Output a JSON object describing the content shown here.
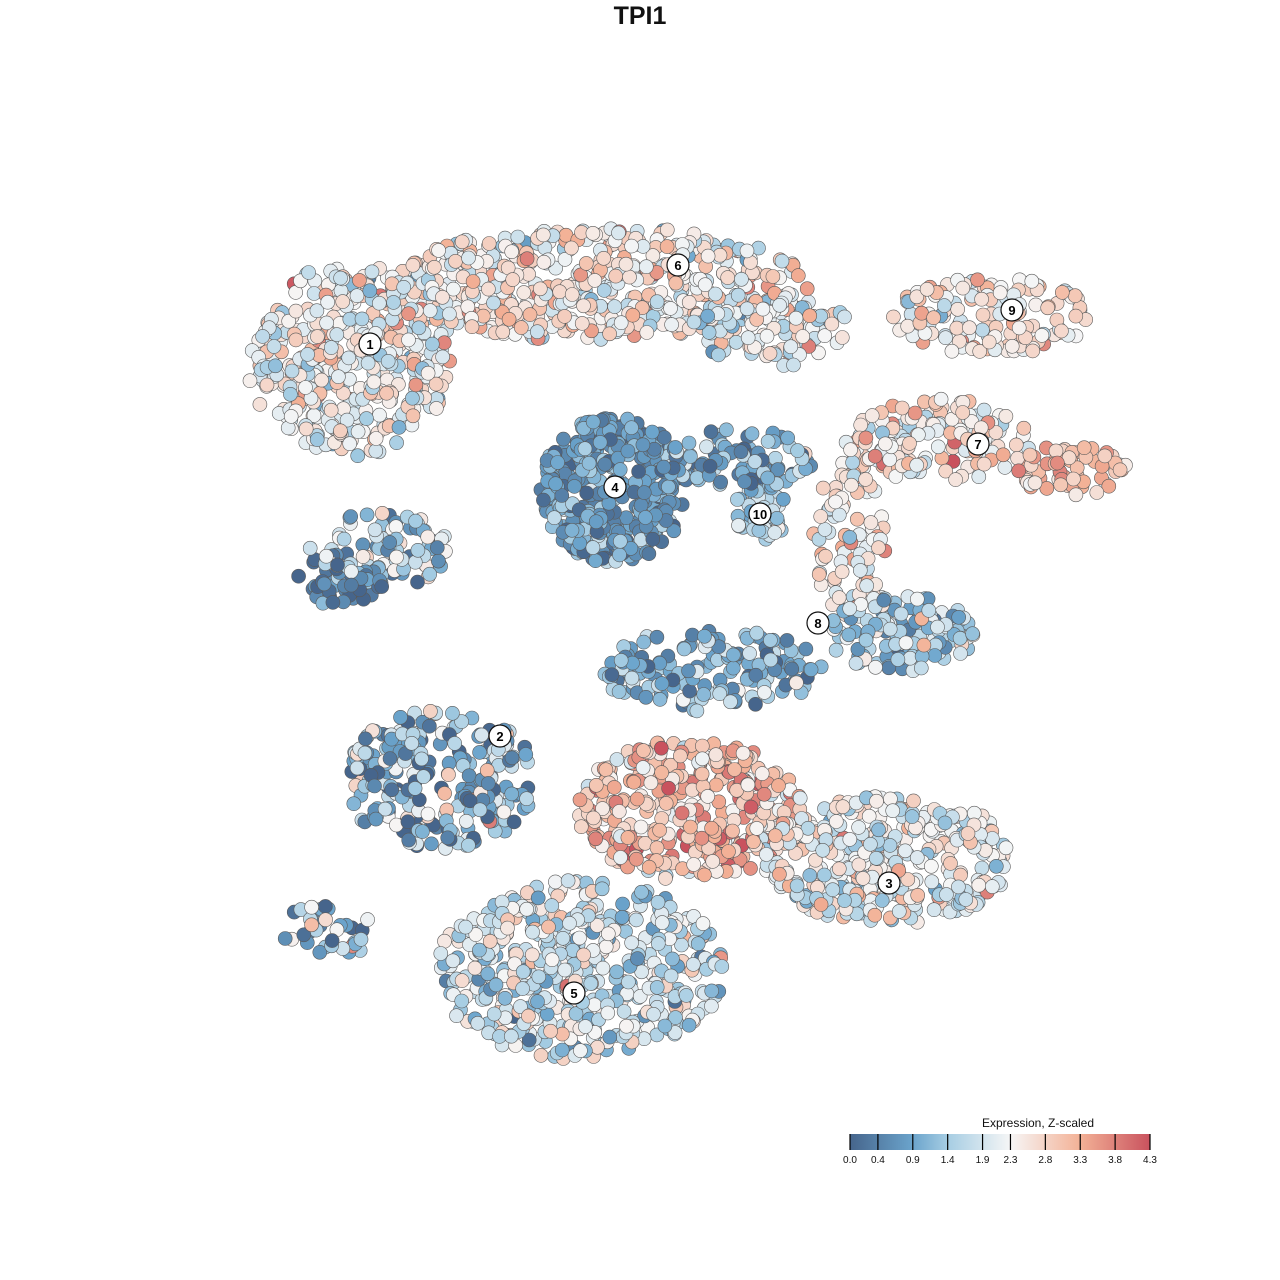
{
  "chart_data": {
    "type": "scatter",
    "title": "TPI1",
    "xlabel": "",
    "ylabel": "",
    "axes_visible": false,
    "grid": false,
    "xlim": [
      -25,
      25
    ],
    "ylim": [
      -25,
      25
    ],
    "legend": {
      "title": "Expression, Z-scaled",
      "placement": "bottom-right",
      "range": [
        0.0,
        4.3
      ],
      "ticks": [
        "0.0",
        "0.4",
        "0.9",
        "1.4",
        "1.9",
        "2.3",
        "2.8",
        "3.3",
        "3.8",
        "4.3"
      ],
      "tick_values": [
        0.0,
        0.4,
        0.9,
        1.4,
        1.9,
        2.3,
        2.8,
        3.3,
        3.8,
        4.3
      ],
      "colors": [
        {
          "v": 0.0,
          "c": "#46658c"
        },
        {
          "v": 0.9,
          "c": "#6ba4cc"
        },
        {
          "v": 1.4,
          "c": "#a6cde3"
        },
        {
          "v": 2.3,
          "c": "#f6f6f6"
        },
        {
          "v": 3.3,
          "c": "#f3b196"
        },
        {
          "v": 4.3,
          "c": "#c9525e"
        }
      ]
    },
    "cluster_labels": [
      {
        "label": "1",
        "x": -13.5,
        "y": 14.8
      },
      {
        "label": "2",
        "x": -7.0,
        "y": -4.8
      },
      {
        "label": "3",
        "x": 12.45,
        "y": -12.15
      },
      {
        "label": "4",
        "x": -1.25,
        "y": 7.65
      },
      {
        "label": "5",
        "x": -3.3,
        "y": -17.65
      },
      {
        "label": "6",
        "x": 1.9,
        "y": 18.75
      },
      {
        "label": "7",
        "x": 16.9,
        "y": 9.8
      },
      {
        "label": "8",
        "x": 8.9,
        "y": 0.85
      },
      {
        "label": "9",
        "x": 18.6,
        "y": 16.5
      },
      {
        "label": "10",
        "x": 6.0,
        "y": 6.3
      }
    ],
    "point_groups": [
      {
        "cluster": "1",
        "cx": -14.5,
        "cy": 14.0,
        "sx": 3.2,
        "sy": 3.0,
        "n": 420,
        "expr_mean": 2.3,
        "expr_sd": 0.6
      },
      {
        "cluster": "1",
        "cx": -13.0,
        "cy": 4.5,
        "sx": 2.2,
        "sy": 1.2,
        "n": 90,
        "expr_mean": 1.5,
        "expr_sd": 0.8
      },
      {
        "cluster": "1",
        "cx": -15.0,
        "cy": 3.0,
        "sx": 1.5,
        "sy": 0.8,
        "n": 50,
        "expr_mean": 0.3,
        "expr_sd": 0.4
      },
      {
        "cluster": "6",
        "cx": -2.0,
        "cy": 17.8,
        "sx": 6.5,
        "sy": 1.8,
        "n": 520,
        "expr_mean": 2.5,
        "expr_sd": 0.55
      },
      {
        "cluster": "6",
        "cx": 6.5,
        "cy": 15.5,
        "sx": 2.5,
        "sy": 1.2,
        "n": 110,
        "expr_mean": 2.1,
        "expr_sd": 0.6
      },
      {
        "cluster": "4",
        "cx": -1.3,
        "cy": 7.5,
        "sx": 2.3,
        "sy": 2.3,
        "n": 380,
        "expr_mean": 0.8,
        "expr_sd": 0.45
      },
      {
        "cluster": "10",
        "cx": 5.0,
        "cy": 9.0,
        "sx": 2.3,
        "sy": 1.0,
        "n": 90,
        "expr_mean": 0.9,
        "expr_sd": 0.6
      },
      {
        "cluster": "10",
        "cx": 6.0,
        "cy": 6.5,
        "sx": 0.8,
        "sy": 1.2,
        "n": 40,
        "expr_mean": 1.4,
        "expr_sd": 0.4
      },
      {
        "cluster": "9",
        "cx": 17.5,
        "cy": 16.2,
        "sx": 3.2,
        "sy": 1.2,
        "n": 140,
        "expr_mean": 2.6,
        "expr_sd": 0.5
      },
      {
        "cluster": "7",
        "cx": 15.0,
        "cy": 10.0,
        "sx": 3.0,
        "sy": 1.3,
        "n": 150,
        "expr_mean": 2.5,
        "expr_sd": 0.6
      },
      {
        "cluster": "7",
        "cx": 21.5,
        "cy": 8.5,
        "sx": 1.8,
        "sy": 0.8,
        "n": 60,
        "expr_mean": 3.0,
        "expr_sd": 0.4
      },
      {
        "cluster": "8",
        "cx": 10.5,
        "cy": 5.0,
        "sx": 1.2,
        "sy": 2.5,
        "n": 90,
        "expr_mean": 2.5,
        "expr_sd": 0.6
      },
      {
        "cluster": "8",
        "cx": 13.0,
        "cy": 0.3,
        "sx": 2.3,
        "sy": 1.2,
        "n": 140,
        "expr_mean": 1.6,
        "expr_sd": 0.7
      },
      {
        "cluster": "8",
        "cx": 3.5,
        "cy": -1.5,
        "sx": 3.5,
        "sy": 1.3,
        "n": 150,
        "expr_mean": 1.1,
        "expr_sd": 0.6
      },
      {
        "cluster": "2",
        "cx": -10.0,
        "cy": -7.0,
        "sx": 3.0,
        "sy": 2.2,
        "n": 250,
        "expr_mean": 1.2,
        "expr_sd": 0.9
      },
      {
        "cluster": "2",
        "cx": -15.5,
        "cy": -14.5,
        "sx": 1.6,
        "sy": 0.8,
        "n": 35,
        "expr_mean": 1.0,
        "expr_sd": 0.9
      },
      {
        "cluster": "3",
        "cx": 2.5,
        "cy": -8.5,
        "sx": 3.5,
        "sy": 2.2,
        "n": 380,
        "expr_mean": 3.0,
        "expr_sd": 0.6
      },
      {
        "cluster": "3",
        "cx": 12.5,
        "cy": -11.0,
        "sx": 4.0,
        "sy": 2.0,
        "n": 380,
        "expr_mean": 2.2,
        "expr_sd": 0.55
      },
      {
        "cluster": "5",
        "cx": -3.0,
        "cy": -16.5,
        "sx": 4.5,
        "sy": 2.8,
        "n": 500,
        "expr_mean": 1.9,
        "expr_sd": 0.6
      }
    ],
    "random_seed": 7
  }
}
